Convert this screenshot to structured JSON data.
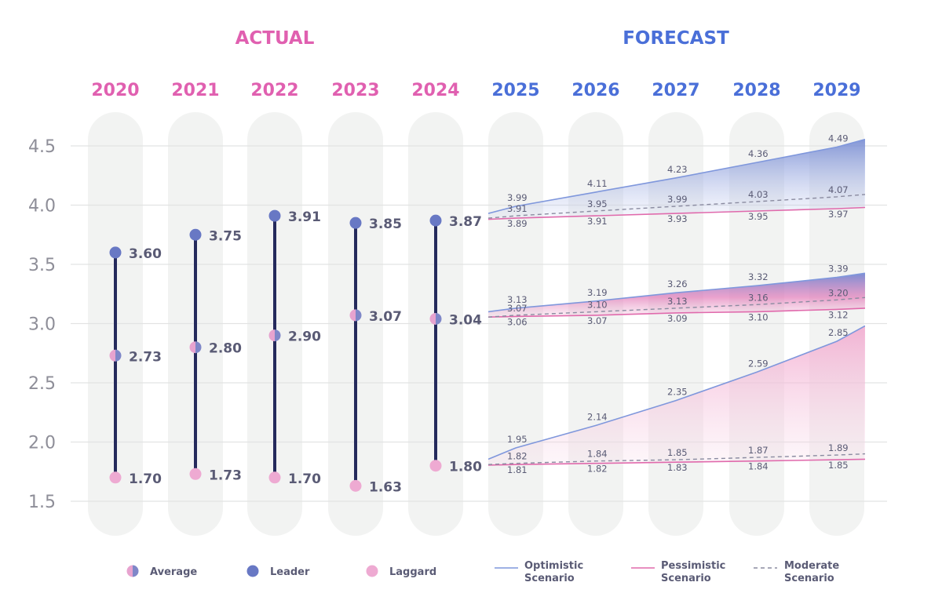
{
  "colors": {
    "actual": "#e060b0",
    "forecast": "#4a6fd8",
    "leader": "#6878c4",
    "laggard": "#eeaad2",
    "range_line": "#252a5c",
    "label": "#5a5b75",
    "axis": "#8e8e98",
    "column": "#f2f3f2",
    "grid": "#e2e3e3",
    "optimistic": "#7f97dc",
    "pessimistic": "#e06aac",
    "moderate": "#8a8ba0"
  },
  "headers": {
    "actual": "ACTUAL",
    "forecast": "FORECAST"
  },
  "chart_data": {
    "type": "line",
    "title": "",
    "y_ticks": [
      "4.5",
      "4.0",
      "3.5",
      "3.0",
      "2.5",
      "2.0",
      "1.5"
    ],
    "ylim": [
      1.5,
      4.5
    ],
    "actual": {
      "years": [
        "2020",
        "2021",
        "2022",
        "2023",
        "2024"
      ],
      "leader": {
        "values": [
          3.6,
          3.75,
          3.91,
          3.85,
          3.87
        ],
        "labels": [
          "3.60",
          "3.75",
          "3.91",
          "3.85",
          "3.87"
        ]
      },
      "average": {
        "values": [
          2.73,
          2.8,
          2.9,
          3.07,
          3.04
        ],
        "labels": [
          "2.73",
          "2.80",
          "2.90",
          "3.07",
          "3.04"
        ]
      },
      "laggard": {
        "values": [
          1.7,
          1.73,
          1.7,
          1.63,
          1.8
        ],
        "labels": [
          "1.70",
          "1.73",
          "1.70",
          "1.63",
          "1.80"
        ]
      }
    },
    "forecast": {
      "years": [
        "2025",
        "2026",
        "2027",
        "2028",
        "2029"
      ],
      "groups": [
        {
          "name": "Leader",
          "optimistic": {
            "values": [
              3.99,
              4.11,
              4.23,
              4.36,
              4.49
            ],
            "labels": [
              "3.99",
              "4.11",
              "4.23",
              "4.36",
              "4.49"
            ]
          },
          "moderate": {
            "values": [
              3.91,
              3.95,
              3.99,
              4.03,
              4.07
            ],
            "labels": [
              "3.91",
              "3.95",
              "3.99",
              "4.03",
              "4.07"
            ]
          },
          "pessimistic": {
            "values": [
              3.89,
              3.91,
              3.93,
              3.95,
              3.97
            ],
            "labels": [
              "3.89",
              "3.91",
              "3.93",
              "3.95",
              "3.97"
            ]
          }
        },
        {
          "name": "Average",
          "optimistic": {
            "values": [
              3.13,
              3.19,
              3.26,
              3.32,
              3.39
            ],
            "labels": [
              "3.13",
              "3.19",
              "3.26",
              "3.32",
              "3.39"
            ]
          },
          "moderate": {
            "values": [
              3.07,
              3.1,
              3.13,
              3.16,
              3.2
            ],
            "labels": [
              "3.07",
              "3.10",
              "3.13",
              "3.16",
              "3.20"
            ]
          },
          "pessimistic": {
            "values": [
              3.06,
              3.07,
              3.09,
              3.1,
              3.12
            ],
            "labels": [
              "3.06",
              "3.07",
              "3.09",
              "3.10",
              "3.12"
            ]
          }
        },
        {
          "name": "Laggard",
          "optimistic": {
            "values": [
              1.95,
              2.14,
              2.35,
              2.59,
              2.85
            ],
            "labels": [
              "1.95",
              "2.14",
              "2.35",
              "2.59",
              "2.85"
            ]
          },
          "moderate": {
            "values": [
              1.82,
              1.84,
              1.85,
              1.87,
              1.89
            ],
            "labels": [
              "1.82",
              "1.84",
              "1.85",
              "1.87",
              "1.89"
            ]
          },
          "pessimistic": {
            "values": [
              1.81,
              1.82,
              1.83,
              1.84,
              1.85
            ],
            "labels": [
              "1.81",
              "1.82",
              "1.83",
              "1.84",
              "1.85"
            ]
          }
        }
      ]
    },
    "legend": {
      "average": "Average",
      "leader": "Leader",
      "laggard": "Laggard",
      "optimistic": [
        "Optimistic",
        "Scenario"
      ],
      "pessimistic": [
        "Pessimistic",
        "Scenario"
      ],
      "moderate": [
        "Moderate",
        "Scenario"
      ]
    }
  }
}
